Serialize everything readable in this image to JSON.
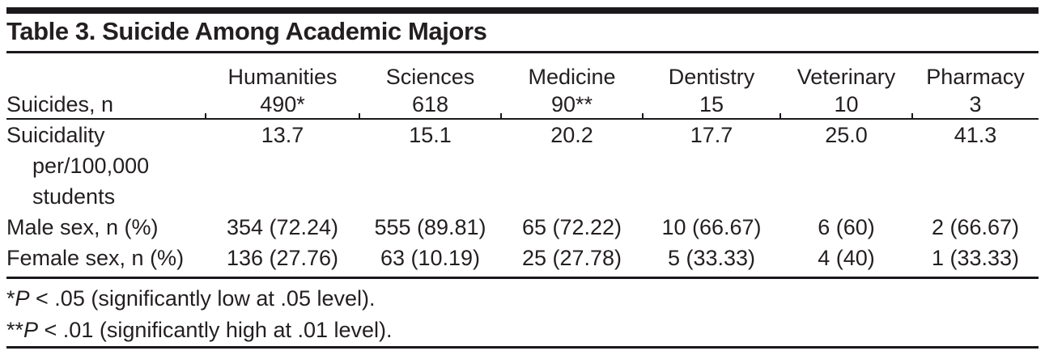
{
  "colors": {
    "text": "#231f20",
    "rule": "#1b181c",
    "background": "#ffffff"
  },
  "table": {
    "title": "Table 3. Suicide Among Academic Majors",
    "stub_label": "Suicides, n",
    "columns": [
      {
        "name": "Humanities",
        "suicides_n": "490*"
      },
      {
        "name": "Sciences",
        "suicides_n": "618"
      },
      {
        "name": "Medicine",
        "suicides_n": "90**"
      },
      {
        "name": "Dentistry",
        "suicides_n": "15"
      },
      {
        "name": "Veterinary",
        "suicides_n": "10"
      },
      {
        "name": "Pharmacy",
        "suicides_n": "3"
      }
    ],
    "rows": [
      {
        "label_lines": [
          "Suicidality",
          "per/100,000",
          "students"
        ],
        "values": [
          "13.7",
          "15.1",
          "20.2",
          "17.7",
          "25.0",
          "41.3"
        ]
      },
      {
        "label": "Male sex, n (%)",
        "values": [
          "354 (72.24)",
          "555 (89.81)",
          "65 (72.22)",
          "10 (66.67)",
          "6 (60)",
          "2 (66.67)"
        ]
      },
      {
        "label": "Female sex, n (%)",
        "values": [
          "136 (27.76)",
          "63 (10.19)",
          "25 (27.78)",
          "5 (33.33)",
          "4 (40)",
          "1 (33.33)"
        ]
      }
    ],
    "footnotes": [
      {
        "marker": "*",
        "stat": "P",
        "text": " < .05 (significantly low at .05 level)."
      },
      {
        "marker": "**",
        "stat": "P",
        "text": " < .01 (significantly high at .01 level)."
      }
    ]
  },
  "chart_data": {
    "type": "table",
    "title": "Table 3. Suicide Among Academic Majors",
    "columns": [
      "",
      "Humanities",
      "Sciences",
      "Medicine",
      "Dentistry",
      "Veterinary",
      "Pharmacy"
    ],
    "rows": [
      [
        "Suicides, n",
        "490*",
        "618",
        "90**",
        "15",
        "10",
        "3"
      ],
      [
        "Suicidality per/100,000 students",
        "13.7",
        "15.1",
        "20.2",
        "17.7",
        "25.0",
        "41.3"
      ],
      [
        "Male sex, n (%)",
        "354 (72.24)",
        "555 (89.81)",
        "65 (72.22)",
        "10 (66.67)",
        "6 (60)",
        "2 (66.67)"
      ],
      [
        "Female sex, n (%)",
        "136 (27.76)",
        "63 (10.19)",
        "25 (27.78)",
        "5 (33.33)",
        "4 (40)",
        "1 (33.33)"
      ]
    ]
  }
}
